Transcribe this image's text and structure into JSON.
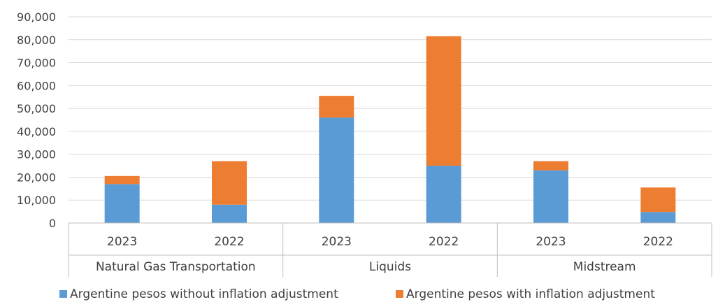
{
  "chart_data": {
    "type": "bar",
    "stacked": true,
    "title": "",
    "groups": [
      "Natural Gas Transportation",
      "Liquids",
      "Midstream"
    ],
    "categories": [
      "2023",
      "2022",
      "2023",
      "2022",
      "2023",
      "2022"
    ],
    "series": [
      {
        "name": "Argentine pesos without inflation adjustment",
        "color": "#5B9BD5",
        "values": [
          17000,
          8000,
          46000,
          25000,
          23000,
          4800
        ]
      },
      {
        "name": "Argentine pesos with inflation adjustment",
        "color": "#ED7D31",
        "values": [
          3500,
          19000,
          9500,
          56500,
          4000,
          10700
        ]
      }
    ],
    "ylim": [
      0,
      90000
    ],
    "yticks": [
      "0",
      "10,000",
      "20,000",
      "30,000",
      "40,000",
      "50,000",
      "60,000",
      "70,000",
      "80,000",
      "90,000"
    ],
    "grid": true,
    "legend": "bottom"
  }
}
